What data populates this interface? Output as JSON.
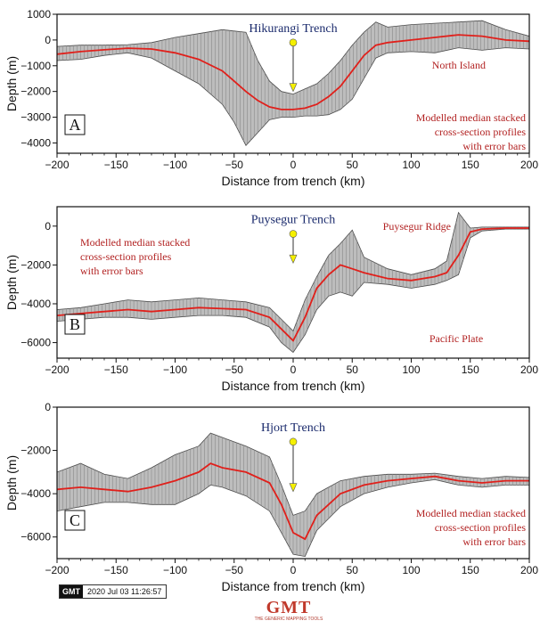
{
  "colors": {
    "band_fill": "#bdbdbd",
    "band_stroke": "#4a4a4a",
    "errorbar": "#8a8a8a",
    "median_line": "#e0201b",
    "marker_yellow": "#f5f000",
    "annotation_red": "#b22222",
    "annotation_blue": "#1a2a6c"
  },
  "footer": {
    "gmt_badge": "GMT",
    "timestamp": "2020 Jul 03 11:26:57",
    "logo_text": "GMT",
    "logo_sub": "THE GENERIC MAPPING TOOLS"
  },
  "chart_data": [
    {
      "type": "area",
      "panel": "A",
      "xlabel": "Distance from trench (km)",
      "ylabel": "Depth (m)",
      "xlim": [
        -200,
        200
      ],
      "ylim": [
        -4400,
        1000
      ],
      "xticks": [
        -200,
        -150,
        -100,
        -50,
        0,
        50,
        100,
        150,
        200
      ],
      "yticks": [
        1000,
        0,
        -1000,
        -2000,
        -3000,
        -4000
      ],
      "grid": false,
      "trench_label": "Hikurangi Trench",
      "annotations": [
        "North Island",
        "Modelled median stacked",
        "cross-section profiles",
        "with error bars"
      ],
      "trench_marker": {
        "x": 0,
        "y_top": -100,
        "y_bottom": -2000
      },
      "series": [
        {
          "name": "median",
          "x": [
            -200,
            -180,
            -160,
            -140,
            -120,
            -100,
            -80,
            -60,
            -50,
            -40,
            -30,
            -20,
            -10,
            0,
            10,
            20,
            30,
            40,
            50,
            60,
            70,
            80,
            100,
            120,
            140,
            160,
            180,
            200
          ],
          "values": [
            -550,
            -450,
            -380,
            -320,
            -350,
            -500,
            -750,
            -1200,
            -1600,
            -2000,
            -2350,
            -2600,
            -2700,
            -2700,
            -2650,
            -2500,
            -2200,
            -1800,
            -1200,
            -600,
            -200,
            -100,
            0,
            100,
            200,
            150,
            0,
            -50
          ]
        },
        {
          "name": "upper",
          "x": [
            -200,
            -180,
            -160,
            -140,
            -120,
            -100,
            -80,
            -60,
            -50,
            -40,
            -30,
            -20,
            -10,
            0,
            10,
            20,
            30,
            40,
            50,
            60,
            70,
            80,
            100,
            120,
            140,
            160,
            180,
            200
          ],
          "values": [
            -250,
            -200,
            -200,
            -180,
            -100,
            100,
            250,
            400,
            350,
            300,
            -800,
            -1600,
            -2000,
            -2100,
            -1900,
            -1700,
            -1300,
            -800,
            -200,
            300,
            700,
            500,
            600,
            650,
            700,
            750,
            400,
            150
          ]
        },
        {
          "name": "lower",
          "x": [
            -200,
            -180,
            -160,
            -140,
            -120,
            -100,
            -80,
            -60,
            -50,
            -40,
            -30,
            -20,
            -10,
            0,
            10,
            20,
            30,
            40,
            50,
            60,
            70,
            80,
            100,
            120,
            140,
            160,
            180,
            200
          ],
          "values": [
            -800,
            -750,
            -600,
            -500,
            -700,
            -1200,
            -1700,
            -2500,
            -3200,
            -4100,
            -3600,
            -3100,
            -3000,
            -3000,
            -2950,
            -2950,
            -2900,
            -2700,
            -2300,
            -1500,
            -700,
            -500,
            -450,
            -500,
            -300,
            -400,
            -300,
            -350
          ]
        }
      ]
    },
    {
      "type": "area",
      "panel": "B",
      "xlabel": "Distance from trench (km)",
      "ylabel": "Depth (m)",
      "xlim": [
        -200,
        200
      ],
      "ylim": [
        -6800,
        1000
      ],
      "xticks": [
        -200,
        -150,
        -100,
        -50,
        0,
        50,
        100,
        150,
        200
      ],
      "yticks": [
        0,
        -2000,
        -4000,
        -6000
      ],
      "grid": false,
      "trench_label": "Puysegur Trench",
      "annotations": [
        "Puysegur Ridge",
        "Modelled median stacked",
        "cross-section profiles",
        "with error bars",
        "Pacific Plate"
      ],
      "trench_marker": {
        "x": 0,
        "y_top": -400,
        "y_bottom": -1900
      },
      "series": [
        {
          "name": "median",
          "x": [
            -200,
            -180,
            -160,
            -140,
            -120,
            -100,
            -80,
            -60,
            -40,
            -20,
            -10,
            0,
            10,
            20,
            30,
            40,
            50,
            60,
            80,
            100,
            120,
            130,
            140,
            150,
            160,
            180,
            200
          ],
          "values": [
            -4600,
            -4500,
            -4400,
            -4300,
            -4400,
            -4300,
            -4200,
            -4250,
            -4300,
            -4700,
            -5300,
            -5900,
            -4700,
            -3200,
            -2500,
            -2000,
            -2200,
            -2400,
            -2700,
            -2800,
            -2600,
            -2400,
            -1500,
            -300,
            -150,
            -100,
            -100
          ]
        },
        {
          "name": "upper",
          "x": [
            -200,
            -180,
            -160,
            -140,
            -120,
            -100,
            -80,
            -60,
            -40,
            -20,
            -10,
            0,
            10,
            20,
            30,
            40,
            50,
            60,
            80,
            100,
            120,
            130,
            140,
            150,
            160,
            180,
            200
          ],
          "values": [
            -4300,
            -4200,
            -4000,
            -3800,
            -3900,
            -3800,
            -3700,
            -3800,
            -3900,
            -4200,
            -4800,
            -5400,
            -3800,
            -2600,
            -1500,
            -900,
            -200,
            -1600,
            -2200,
            -2500,
            -2200,
            -1800,
            700,
            -100,
            -50,
            -50,
            -50
          ]
        },
        {
          "name": "lower",
          "x": [
            -200,
            -180,
            -160,
            -140,
            -120,
            -100,
            -80,
            -60,
            -40,
            -20,
            -10,
            0,
            10,
            20,
            30,
            40,
            50,
            60,
            80,
            100,
            120,
            130,
            140,
            150,
            160,
            180,
            200
          ],
          "values": [
            -4900,
            -4800,
            -4700,
            -4700,
            -4800,
            -4700,
            -4600,
            -4600,
            -4700,
            -5200,
            -6000,
            -6500,
            -5600,
            -4300,
            -3600,
            -3400,
            -3600,
            -2900,
            -3000,
            -3200,
            -3000,
            -2800,
            -2500,
            -600,
            -250,
            -150,
            -150
          ]
        }
      ]
    },
    {
      "type": "area",
      "panel": "C",
      "xlabel": "Distance from trench (km)",
      "ylabel": "Depth (m)",
      "xlim": [
        -200,
        200
      ],
      "ylim": [
        -7000,
        0
      ],
      "xticks": [
        -200,
        -150,
        -100,
        -50,
        0,
        50,
        100,
        150,
        200
      ],
      "yticks": [
        0,
        -2000,
        -4000,
        -6000
      ],
      "grid": false,
      "trench_label": "Hjort Trench",
      "annotations": [
        "Modelled median stacked",
        "cross-section profiles",
        "with error bars"
      ],
      "trench_marker": {
        "x": 0,
        "y_top": -1600,
        "y_bottom": -3900
      },
      "series": [
        {
          "name": "median",
          "x": [
            -200,
            -180,
            -160,
            -140,
            -120,
            -100,
            -80,
            -70,
            -60,
            -40,
            -20,
            -10,
            0,
            10,
            20,
            40,
            60,
            80,
            100,
            120,
            140,
            160,
            180,
            200
          ],
          "values": [
            -3800,
            -3700,
            -3800,
            -3900,
            -3700,
            -3400,
            -3000,
            -2600,
            -2800,
            -3000,
            -3500,
            -4500,
            -5800,
            -6100,
            -5000,
            -4000,
            -3600,
            -3400,
            -3300,
            -3200,
            -3400,
            -3500,
            -3400,
            -3400
          ]
        },
        {
          "name": "upper",
          "x": [
            -200,
            -180,
            -160,
            -140,
            -120,
            -100,
            -80,
            -70,
            -60,
            -40,
            -20,
            -10,
            0,
            10,
            20,
            40,
            60,
            80,
            100,
            120,
            140,
            160,
            180,
            200
          ],
          "values": [
            -3000,
            -2600,
            -3100,
            -3300,
            -2800,
            -2200,
            -1800,
            -1200,
            -1400,
            -1800,
            -2300,
            -3600,
            -5000,
            -4800,
            -4000,
            -3400,
            -3200,
            -3100,
            -3100,
            -3050,
            -3200,
            -3300,
            -3200,
            -3250
          ]
        },
        {
          "name": "lower",
          "x": [
            -200,
            -180,
            -160,
            -140,
            -120,
            -100,
            -80,
            -70,
            -60,
            -40,
            -20,
            -10,
            0,
            10,
            20,
            40,
            60,
            80,
            100,
            120,
            140,
            160,
            180,
            200
          ],
          "values": [
            -4800,
            -4600,
            -4400,
            -4400,
            -4500,
            -4500,
            -4000,
            -3600,
            -3700,
            -4100,
            -4800,
            -5800,
            -6800,
            -6900,
            -5700,
            -4600,
            -4000,
            -3700,
            -3500,
            -3350,
            -3600,
            -3700,
            -3600,
            -3600
          ]
        }
      ]
    }
  ]
}
